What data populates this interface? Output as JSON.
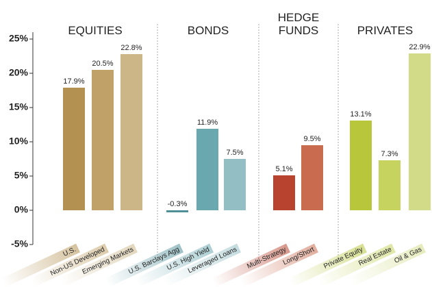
{
  "chart_data": {
    "type": "bar",
    "yticks": [
      {
        "value": -5,
        "label": "-5%"
      },
      {
        "value": 0,
        "label": "0%"
      },
      {
        "value": 5,
        "label": "5%"
      },
      {
        "value": 10,
        "label": "10%"
      },
      {
        "value": 15,
        "label": "15%"
      },
      {
        "value": 20,
        "label": "20%"
      },
      {
        "value": 25,
        "label": "25%"
      }
    ],
    "ylim": [
      -5,
      25
    ],
    "groups": [
      {
        "name": "EQUITIES",
        "categories": [
          "U.S.",
          "Non-US Developed",
          "Emerging Markets"
        ],
        "values": [
          17.9,
          20.5,
          22.8
        ],
        "value_labels": [
          "17.9%",
          "20.5%",
          "22.8%"
        ],
        "colors": [
          "#b39150",
          "#c0a268",
          "#ccb687"
        ]
      },
      {
        "name": "BONDS",
        "categories": [
          "U.S. Barclays Agg",
          "U.S. High Yield",
          "Leveraged Loans"
        ],
        "values": [
          -0.3,
          11.9,
          7.5
        ],
        "value_labels": [
          "-0.3%",
          "11.9%",
          "7.5%"
        ],
        "colors": [
          "#4f8f98",
          "#6aa8b0",
          "#93bfc4"
        ]
      },
      {
        "name": "HEDGE FUNDS",
        "categories": [
          "Multi-Strategy",
          "Long/Short"
        ],
        "values": [
          5.1,
          9.5
        ],
        "value_labels": [
          "5.1%",
          "9.5%"
        ],
        "colors": [
          "#b8442f",
          "#c96b4f"
        ]
      },
      {
        "name": "PRIVATES",
        "categories": [
          "Private Equity",
          "Real Estate",
          "Oil & Gas"
        ],
        "values": [
          13.1,
          7.3,
          22.9
        ],
        "value_labels": [
          "13.1%",
          "7.3%",
          "22.9%"
        ],
        "colors": [
          "#b7c63b",
          "#c6d35f",
          "#d2db88"
        ]
      }
    ]
  }
}
